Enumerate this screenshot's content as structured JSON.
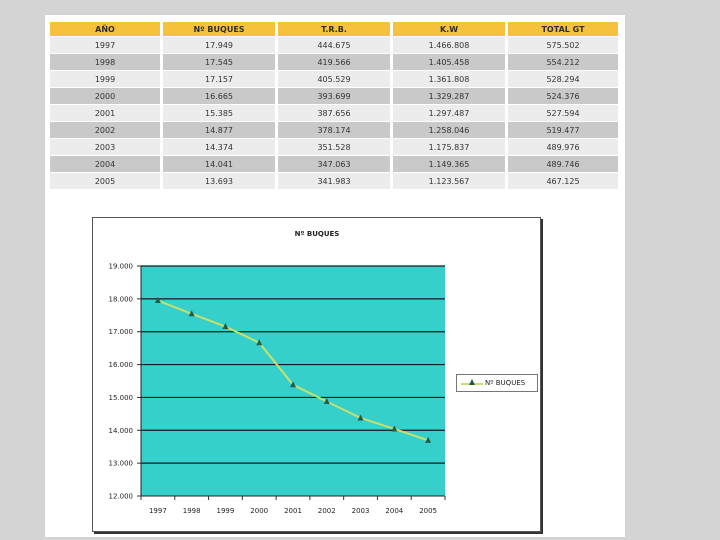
{
  "table": {
    "headers": [
      "AÑO",
      "Nº BUQUES",
      "T.R.B.",
      "K.W",
      "TOTAL GT"
    ],
    "rows": [
      [
        "1997",
        "17.949",
        "444.675",
        "1.466.808",
        "575.502"
      ],
      [
        "1998",
        "17.545",
        "419.566",
        "1.405.458",
        "554.212"
      ],
      [
        "1999",
        "17.157",
        "405.529",
        "1.361.808",
        "528.294"
      ],
      [
        "2000",
        "16.665",
        "393.699",
        "1.329.287",
        "524.376"
      ],
      [
        "2001",
        "15.385",
        "387.656",
        "1.297.487",
        "527.594"
      ],
      [
        "2002",
        "14.877",
        "378.174",
        "1.258.046",
        "519.477"
      ],
      [
        "2003",
        "14.374",
        "351.528",
        "1.175.837",
        "489.976"
      ],
      [
        "2004",
        "14.041",
        "347.063",
        "1.149.365",
        "489.746"
      ],
      [
        "2005",
        "13.693",
        "341.983",
        "1.123.567",
        "467.125"
      ]
    ]
  },
  "chart_data": {
    "type": "line",
    "title": "Nº BUQUES",
    "x": [
      "1997",
      "1998",
      "1999",
      "2000",
      "2001",
      "2002",
      "2003",
      "2004",
      "2005"
    ],
    "series": [
      {
        "name": "Nº BUQUES",
        "values": [
          17949,
          17545,
          17157,
          16665,
          15385,
          14877,
          14374,
          14041,
          13693
        ]
      }
    ],
    "ylim": [
      12000,
      19000
    ],
    "yticks": [
      12000,
      13000,
      14000,
      15000,
      16000,
      17000,
      18000,
      19000
    ],
    "ytick_labels": [
      "12.000",
      "13.000",
      "14.000",
      "15.000",
      "16.000",
      "17.000",
      "18.000",
      "19.000"
    ],
    "grid": true,
    "legend_position": "right",
    "colors": {
      "plot_bg": "#35cfcc",
      "grid": "#1a1a1a",
      "line": "#c8e06a",
      "marker": "#1f5c50"
    }
  }
}
